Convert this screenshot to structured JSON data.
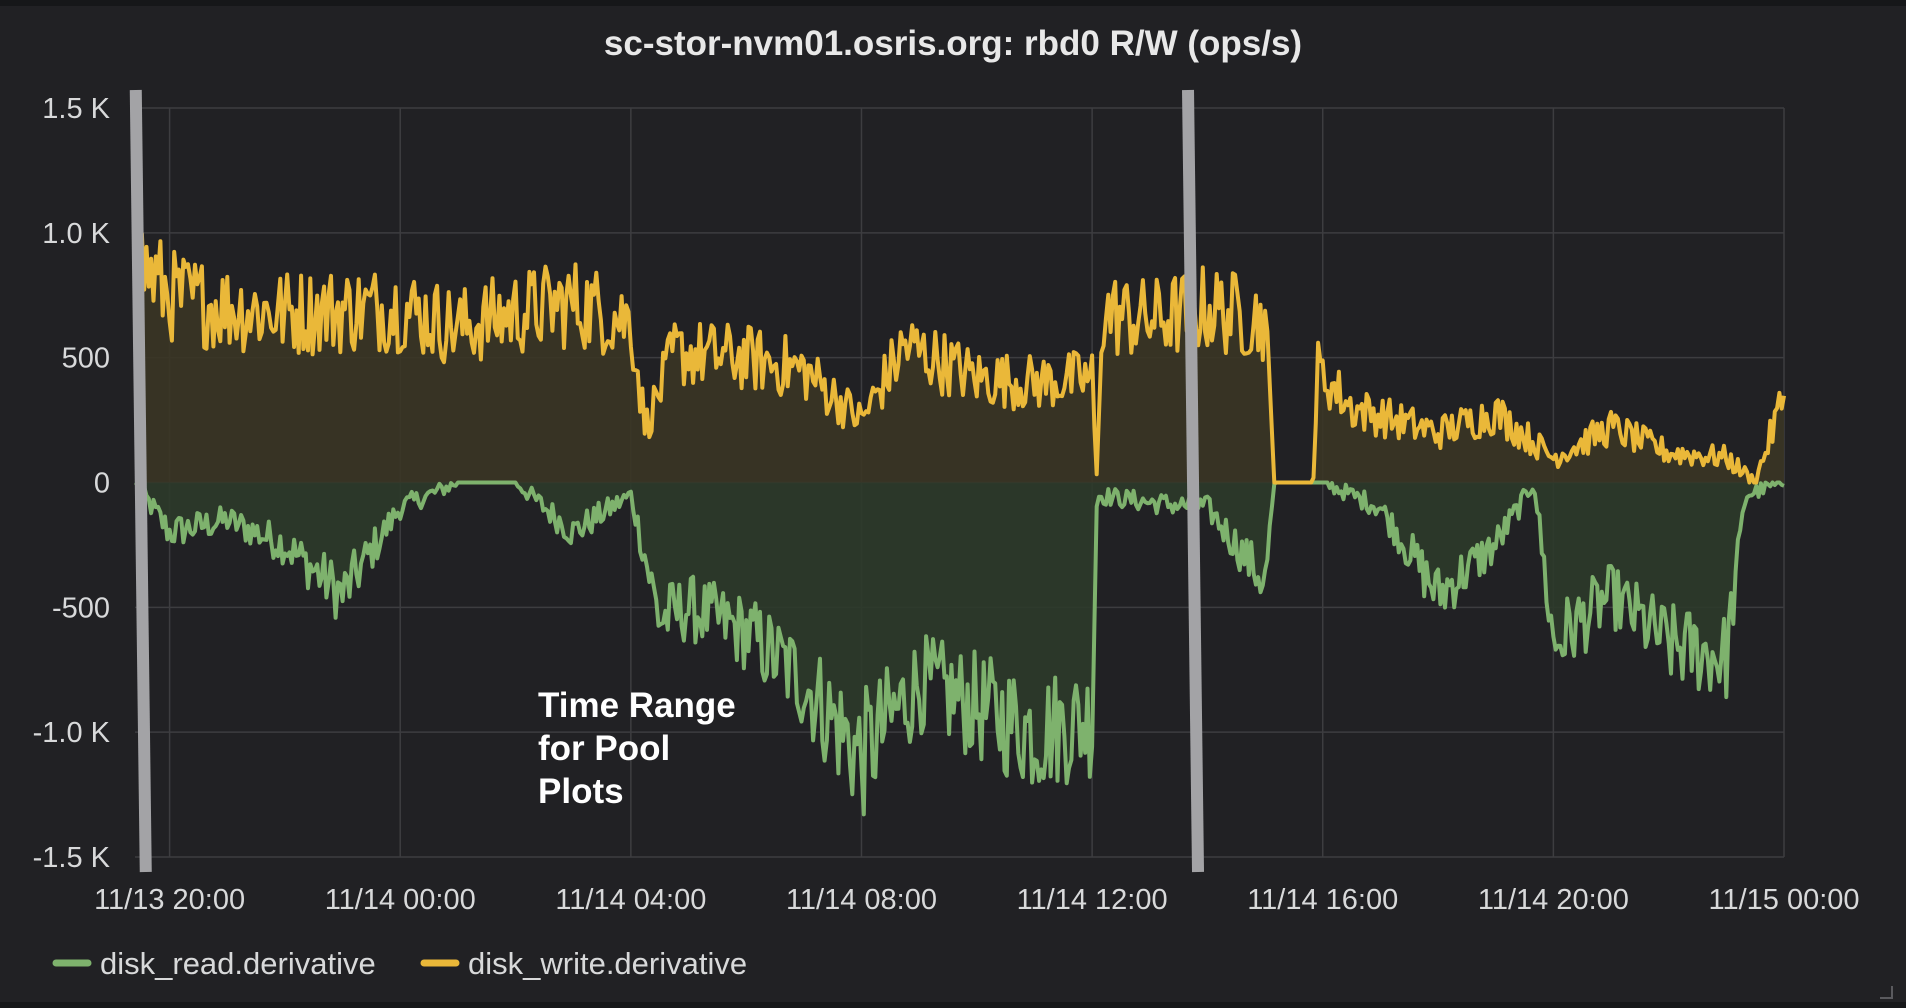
{
  "chart_data": {
    "type": "area",
    "title": "sc-stor-nvm01.osris.org: rbd0 R/W (ops/s)",
    "x_tick_labels": [
      "11/13 20:00",
      "11/14 00:00",
      "11/14 04:00",
      "11/14 08:00",
      "11/14 12:00",
      "11/14 16:00",
      "11/14 20:00",
      "11/15 00:00"
    ],
    "y_tick_labels": [
      "1.5 K",
      "1.0 K",
      "500",
      "0",
      "-500",
      "-1.0 K",
      "-1.5 K"
    ],
    "y_ticks": [
      1500,
      1000,
      500,
      0,
      -500,
      -1000,
      -1500
    ],
    "ylim": [
      -1500,
      1500
    ],
    "xlim": [
      "11/13 19:24",
      "11/15 00:00"
    ],
    "x_unit": "hours since 11/13 20:00 (negative = before)",
    "grid": true,
    "legend_position": "bottom-left",
    "annotation": [
      "Time Range",
      "for Pool",
      "Plots"
    ],
    "range_markers": [
      "11/13 19:30",
      "11/14 13:45"
    ],
    "series": [
      {
        "name": "disk_read.derivative",
        "color": "#7eb26d",
        "fill": "#2c3a2a",
        "points": [
          [
            "11/13 19:24",
            0
          ],
          [
            "11/13 20:00",
            -200
          ],
          [
            "11/13 21:00",
            -150
          ],
          [
            "11/13 22:00",
            -250
          ],
          [
            "11/13 23:00",
            -450
          ],
          [
            "11/14 00:00",
            -100
          ],
          [
            "11/14 01:00",
            0
          ],
          [
            "11/14 02:00",
            0
          ],
          [
            "11/14 03:00",
            -200
          ],
          [
            "11/14 04:00",
            -50
          ],
          [
            "11/14 04:30",
            -550
          ],
          [
            "11/14 05:00",
            -500
          ],
          [
            "11/14 06:00",
            -600
          ],
          [
            "11/14 07:00",
            -800
          ],
          [
            "11/14 08:00",
            -1100
          ],
          [
            "11/14 09:00",
            -800
          ],
          [
            "11/14 10:00",
            -900
          ],
          [
            "11/14 11:00",
            -1000
          ],
          [
            "11/14 12:00",
            -950
          ],
          [
            "11/14 12:05",
            -50
          ],
          [
            "11/14 13:00",
            -80
          ],
          [
            "11/14 14:00",
            -100
          ],
          [
            "11/14 15:00",
            -400
          ],
          [
            "11/14 15:10",
            0
          ],
          [
            "11/14 16:00",
            0
          ],
          [
            "11/14 17:00",
            -100
          ],
          [
            "11/14 18:00",
            -450
          ],
          [
            "11/14 19:00",
            -250
          ],
          [
            "11/14 19:40",
            0
          ],
          [
            "11/14 20:00",
            -650
          ],
          [
            "11/14 21:00",
            -450
          ],
          [
            "11/14 22:00",
            -650
          ],
          [
            "11/14 23:00",
            -700
          ],
          [
            "11/14 23:20",
            -50
          ],
          [
            "11/15 00:00",
            0
          ]
        ]
      },
      {
        "name": "disk_write.derivative",
        "color": "#eab839",
        "fill": "#3a3525",
        "points": [
          [
            "11/13 19:24",
            900
          ],
          [
            "11/13 20:00",
            750
          ],
          [
            "11/13 21:00",
            700
          ],
          [
            "11/13 22:00",
            680
          ],
          [
            "11/14 00:00",
            700
          ],
          [
            "11/14 01:00",
            620
          ],
          [
            "11/14 02:00",
            680
          ],
          [
            "11/14 03:00",
            720
          ],
          [
            "11/14 04:00",
            650
          ],
          [
            "11/14 04:15",
            220
          ],
          [
            "11/14 04:45",
            520
          ],
          [
            "11/14 06:00",
            500
          ],
          [
            "11/14 07:00",
            450
          ],
          [
            "11/14 08:00",
            250
          ],
          [
            "11/14 08:45",
            550
          ],
          [
            "11/14 10:00",
            420
          ],
          [
            "11/14 11:00",
            400
          ],
          [
            "11/14 12:00",
            420
          ],
          [
            "11/14 12:05",
            0
          ],
          [
            "11/14 12:10",
            680
          ],
          [
            "11/14 13:00",
            650
          ],
          [
            "11/14 14:00",
            700
          ],
          [
            "11/14 15:00",
            650
          ],
          [
            "11/14 15:10",
            0
          ],
          [
            "11/14 15:50",
            0
          ],
          [
            "11/14 15:55",
            450
          ],
          [
            "11/14 16:30",
            300
          ],
          [
            "11/14 18:00",
            200
          ],
          [
            "11/14 19:00",
            280
          ],
          [
            "11/14 20:00",
            100
          ],
          [
            "11/14 21:00",
            220
          ],
          [
            "11/14 22:00",
            120
          ],
          [
            "11/14 23:00",
            100
          ],
          [
            "11/14 23:30",
            0
          ],
          [
            "11/15 00:00",
            350
          ]
        ]
      }
    ]
  }
}
